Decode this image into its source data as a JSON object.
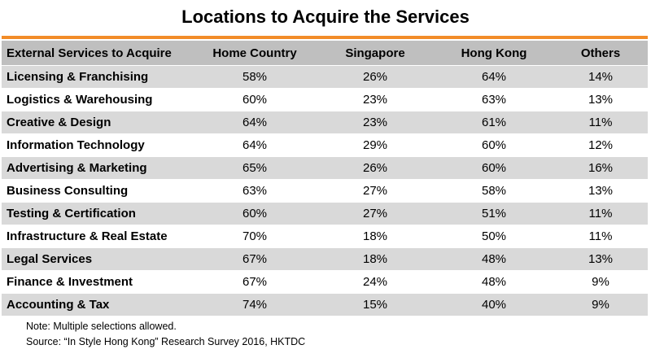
{
  "chart_data": {
    "type": "table",
    "title": "Locations to Acquire the Services",
    "columns": [
      "External Services to Acquire",
      "Home Country",
      "Singapore",
      "Hong Kong",
      "Others"
    ],
    "rows": [
      [
        "Licensing & Franchising",
        "58%",
        "26%",
        "64%",
        "14%"
      ],
      [
        "Logistics & Warehousing",
        "60%",
        "23%",
        "63%",
        "13%"
      ],
      [
        "Creative & Design",
        "64%",
        "23%",
        "61%",
        "11%"
      ],
      [
        "Information Technology",
        "64%",
        "29%",
        "60%",
        "12%"
      ],
      [
        "Advertising & Marketing",
        "65%",
        "26%",
        "60%",
        "16%"
      ],
      [
        "Business Consulting",
        "63%",
        "27%",
        "58%",
        "13%"
      ],
      [
        "Testing & Certification",
        "60%",
        "27%",
        "51%",
        "11%"
      ],
      [
        "Infrastructure & Real Estate",
        "70%",
        "18%",
        "50%",
        "11%"
      ],
      [
        "Legal Services",
        "67%",
        "18%",
        "48%",
        "13%"
      ],
      [
        "Finance & Investment",
        "67%",
        "24%",
        "48%",
        "9%"
      ],
      [
        "Accounting & Tax",
        "74%",
        "15%",
        "40%",
        "9%"
      ]
    ],
    "notes": [
      "Note: Multiple selections allowed.",
      "Source: “In Style Hong Kong” Research Survey 2016, HKTDC"
    ]
  },
  "colors": {
    "accent": "#f28c28",
    "header_bg": "#bfbfbf",
    "band_bg": "#d9d9d9"
  }
}
